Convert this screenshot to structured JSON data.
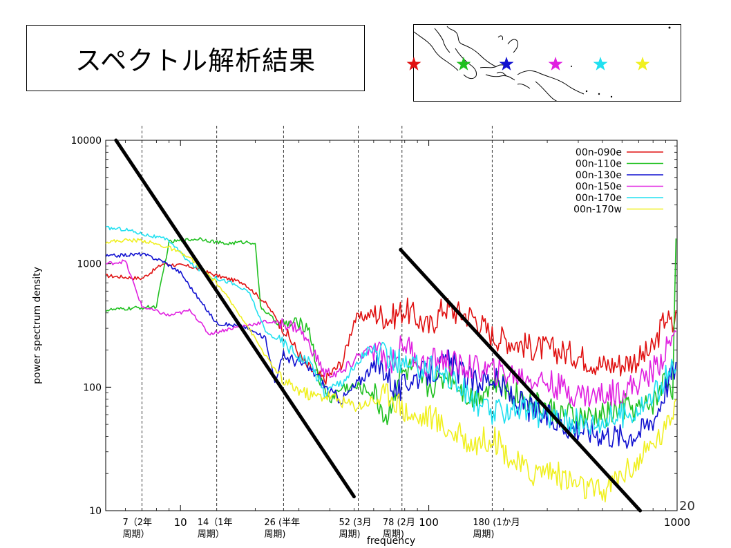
{
  "slide": {
    "title": "スペクトル解析結果",
    "page_number": "20"
  },
  "map": {
    "stars": [
      {
        "station": "00n-090e",
        "color": "#e01010"
      },
      {
        "station": "00n-110e",
        "color": "#20c020"
      },
      {
        "station": "00n-130e",
        "color": "#1010d0"
      },
      {
        "station": "00n-150e",
        "color": "#e020e0"
      },
      {
        "station": "00n-170e",
        "color": "#20e0f0"
      },
      {
        "station": "00n-170w",
        "color": "#f0f020"
      }
    ]
  },
  "periods": [
    {
      "freq": 7,
      "label1": "7（2年",
      "label2": "周期）"
    },
    {
      "freq": 14,
      "label1": "14（1年",
      "label2": "周期）"
    },
    {
      "freq": 26,
      "label1": "26 (半年",
      "label2": "周期)"
    },
    {
      "freq": 52,
      "label1": "52 (3月",
      "label2": "周期)"
    },
    {
      "freq": 78,
      "label1": "78 (2月",
      "label2": "周期)"
    },
    {
      "freq": 180,
      "label1": "180 (1か月",
      "label2": "周期)"
    }
  ],
  "chart_data": {
    "type": "line",
    "title": "",
    "xlabel": "frequency",
    "ylabel": "power spectrum density",
    "xscale": "log",
    "yscale": "log",
    "xlim": [
      5,
      1000
    ],
    "ylim": [
      10,
      10000
    ],
    "x_ticks": [
      {
        "value": 10,
        "label": "10"
      },
      {
        "value": 100,
        "label": "100"
      },
      {
        "value": 1000,
        "label": "1000"
      }
    ],
    "y_ticks": [
      {
        "value": 10,
        "label": "10"
      },
      {
        "value": 100,
        "label": "100"
      },
      {
        "value": 1000,
        "label": "1000"
      },
      {
        "value": 10000,
        "label": "10000"
      }
    ],
    "legend_position": "top-right",
    "series": [
      {
        "name": "00n-090e",
        "color": "#e01010",
        "points": [
          [
            5,
            800
          ],
          [
            7,
            760
          ],
          [
            8.5,
            1000
          ],
          [
            11,
            950
          ],
          [
            14,
            800
          ],
          [
            18,
            700
          ],
          [
            22,
            480
          ],
          [
            26,
            300
          ],
          [
            32,
            150
          ],
          [
            38,
            115
          ],
          [
            45,
            160
          ],
          [
            50,
            350
          ],
          [
            60,
            400
          ],
          [
            70,
            360
          ],
          [
            80,
            430
          ],
          [
            90,
            360
          ],
          [
            100,
            300
          ],
          [
            115,
            450
          ],
          [
            130,
            400
          ],
          [
            150,
            380
          ],
          [
            180,
            260
          ],
          [
            210,
            240
          ],
          [
            260,
            210
          ],
          [
            320,
            200
          ],
          [
            400,
            180
          ],
          [
            500,
            150
          ],
          [
            600,
            155
          ],
          [
            700,
            170
          ],
          [
            800,
            200
          ],
          [
            900,
            380
          ],
          [
            960,
            300
          ],
          [
            990,
            420
          ]
        ]
      },
      {
        "name": "00n-110e",
        "color": "#20c020",
        "points": [
          [
            5,
            420
          ],
          [
            8,
            450
          ],
          [
            9,
            1500
          ],
          [
            12,
            1600
          ],
          [
            15,
            1450
          ],
          [
            18,
            1500
          ],
          [
            20,
            1480
          ],
          [
            21,
            450
          ],
          [
            25,
            320
          ],
          [
            30,
            330
          ],
          [
            33,
            300
          ],
          [
            36,
            120
          ],
          [
            40,
            80
          ],
          [
            45,
            100
          ],
          [
            52,
            100
          ],
          [
            60,
            90
          ],
          [
            68,
            55
          ],
          [
            75,
            120
          ],
          [
            85,
            140
          ],
          [
            100,
            100
          ],
          [
            120,
            130
          ],
          [
            150,
            80
          ],
          [
            180,
            110
          ],
          [
            220,
            90
          ],
          [
            280,
            70
          ],
          [
            350,
            60
          ],
          [
            430,
            55
          ],
          [
            520,
            60
          ],
          [
            620,
            70
          ],
          [
            720,
            65
          ],
          [
            820,
            80
          ],
          [
            900,
            120
          ],
          [
            960,
            100
          ],
          [
            990,
            1600
          ]
        ]
      },
      {
        "name": "00n-130e",
        "color": "#1010d0",
        "points": [
          [
            5,
            1150
          ],
          [
            7,
            1200
          ],
          [
            8.5,
            1050
          ],
          [
            10,
            850
          ],
          [
            12,
            500
          ],
          [
            14,
            330
          ],
          [
            18,
            310
          ],
          [
            22,
            250
          ],
          [
            24,
            110
          ],
          [
            26,
            180
          ],
          [
            30,
            160
          ],
          [
            35,
            130
          ],
          [
            40,
            90
          ],
          [
            45,
            80
          ],
          [
            50,
            100
          ],
          [
            58,
            140
          ],
          [
            65,
            150
          ],
          [
            75,
            90
          ],
          [
            85,
            120
          ],
          [
            100,
            130
          ],
          [
            120,
            160
          ],
          [
            150,
            110
          ],
          [
            180,
            120
          ],
          [
            220,
            80
          ],
          [
            280,
            60
          ],
          [
            350,
            50
          ],
          [
            430,
            45
          ],
          [
            520,
            42
          ],
          [
            620,
            40
          ],
          [
            720,
            45
          ],
          [
            820,
            60
          ],
          [
            900,
            100
          ],
          [
            960,
            130
          ],
          [
            990,
            160
          ]
        ]
      },
      {
        "name": "00n-150e",
        "color": "#e020e0",
        "points": [
          [
            5,
            1000
          ],
          [
            6,
            1050
          ],
          [
            7,
            450
          ],
          [
            9,
            380
          ],
          [
            11,
            420
          ],
          [
            13,
            270
          ],
          [
            16,
            300
          ],
          [
            19,
            320
          ],
          [
            22,
            340
          ],
          [
            26,
            330
          ],
          [
            30,
            300
          ],
          [
            34,
            200
          ],
          [
            38,
            130
          ],
          [
            45,
            130
          ],
          [
            52,
            180
          ],
          [
            60,
            200
          ],
          [
            70,
            160
          ],
          [
            80,
            230
          ],
          [
            95,
            150
          ],
          [
            110,
            170
          ],
          [
            130,
            150
          ],
          [
            160,
            140
          ],
          [
            200,
            130
          ],
          [
            250,
            120
          ],
          [
            300,
            110
          ],
          [
            380,
            90
          ],
          [
            460,
            85
          ],
          [
            550,
            90
          ],
          [
            650,
            100
          ],
          [
            750,
            120
          ],
          [
            850,
            160
          ],
          [
            930,
            220
          ],
          [
            990,
            280
          ]
        ]
      },
      {
        "name": "00n-170e",
        "color": "#20e0f0",
        "points": [
          [
            5,
            1950
          ],
          [
            6,
            1900
          ],
          [
            7,
            1750
          ],
          [
            9,
            1550
          ],
          [
            11,
            1000
          ],
          [
            13,
            800
          ],
          [
            16,
            700
          ],
          [
            19,
            580
          ],
          [
            22,
            280
          ],
          [
            26,
            230
          ],
          [
            30,
            180
          ],
          [
            34,
            150
          ],
          [
            38,
            90
          ],
          [
            44,
            110
          ],
          [
            50,
            140
          ],
          [
            56,
            200
          ],
          [
            65,
            180
          ],
          [
            75,
            160
          ],
          [
            85,
            140
          ],
          [
            100,
            150
          ],
          [
            120,
            120
          ],
          [
            150,
            80
          ],
          [
            180,
            60
          ],
          [
            220,
            70
          ],
          [
            280,
            60
          ],
          [
            350,
            55
          ],
          [
            430,
            50
          ],
          [
            520,
            55
          ],
          [
            620,
            60
          ],
          [
            720,
            70
          ],
          [
            820,
            90
          ],
          [
            900,
            120
          ],
          [
            990,
            140
          ]
        ]
      },
      {
        "name": "00n-170w",
        "color": "#f0f020",
        "points": [
          [
            5,
            1500
          ],
          [
            6,
            1550
          ],
          [
            7,
            1550
          ],
          [
            9,
            1350
          ],
          [
            11,
            1100
          ],
          [
            14,
            700
          ],
          [
            18,
            350
          ],
          [
            22,
            180
          ],
          [
            26,
            110
          ],
          [
            30,
            95
          ],
          [
            34,
            85
          ],
          [
            40,
            85
          ],
          [
            46,
            75
          ],
          [
            52,
            70
          ],
          [
            60,
            80
          ],
          [
            70,
            90
          ],
          [
            80,
            65
          ],
          [
            90,
            55
          ],
          [
            100,
            60
          ],
          [
            120,
            45
          ],
          [
            150,
            35
          ],
          [
            180,
            40
          ],
          [
            220,
            25
          ],
          [
            260,
            20
          ],
          [
            300,
            22
          ],
          [
            360,
            18
          ],
          [
            430,
            15
          ],
          [
            500,
            14
          ],
          [
            600,
            20
          ],
          [
            700,
            25
          ],
          [
            800,
            35
          ],
          [
            900,
            45
          ],
          [
            990,
            80
          ]
        ]
      }
    ],
    "reference_lines": [
      {
        "points": [
          [
            5.5,
            10000
          ],
          [
            50,
            13
          ]
        ],
        "color": "#000000"
      },
      {
        "points": [
          [
            77,
            1300
          ],
          [
            710,
            10
          ]
        ],
        "color": "#000000"
      }
    ],
    "vertical_lines": [
      7,
      14,
      26,
      52,
      78,
      180
    ]
  }
}
